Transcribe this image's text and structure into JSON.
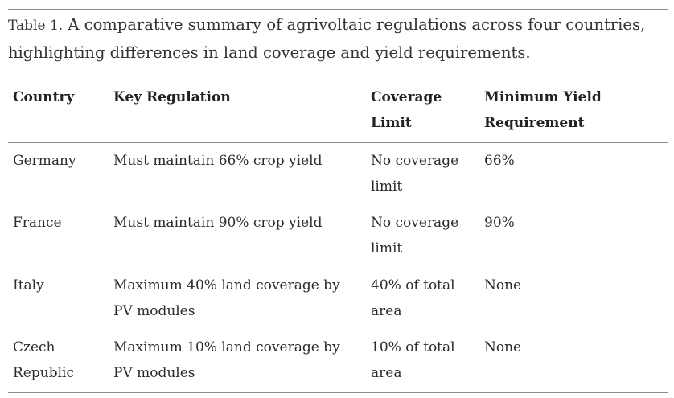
{
  "caption": {
    "label": "Table 1.",
    "text": " A comparative summary of agrivoltaic regulations across four countries, highlighting differences in land coverage and yield requirements."
  },
  "table": {
    "headers": [
      "Country",
      "Key Regulation",
      "Coverage Limit",
      "Minimum Yield Requirement"
    ],
    "rows": [
      [
        "Germany",
        "Must maintain 66% crop yield",
        "No coverage limit",
        "66%"
      ],
      [
        "France",
        "Must maintain 90% crop yield",
        "No coverage limit",
        "90%"
      ],
      [
        "Italy",
        "Maximum 40% land coverage by PV modules",
        "40% of total area",
        "None"
      ],
      [
        "Czech Republic",
        "Maximum 10% land coverage by PV modules",
        "10% of total area",
        "None"
      ]
    ]
  }
}
